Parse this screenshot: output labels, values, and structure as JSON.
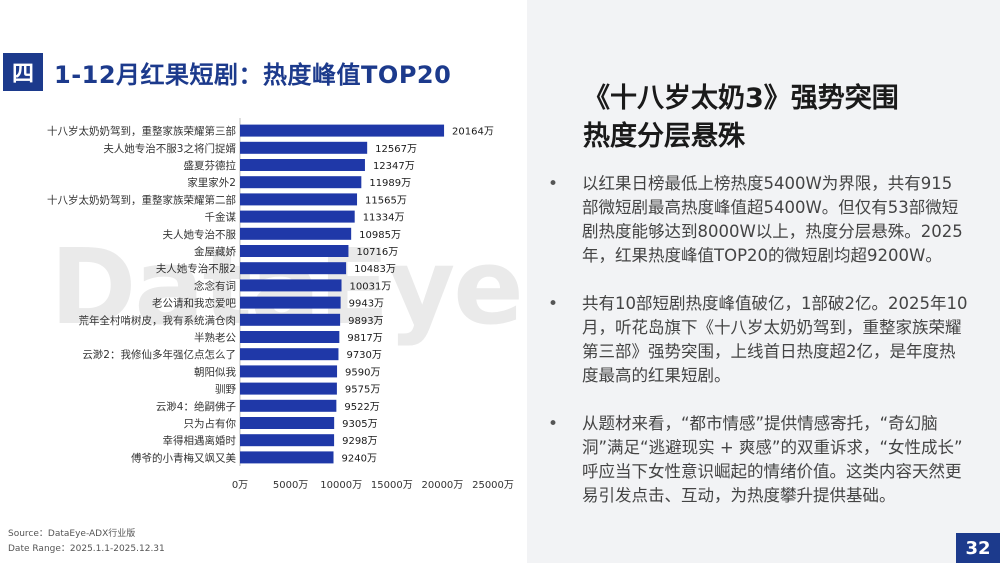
{
  "section": {
    "badge": "四",
    "title": "1-12月红果短剧：热度峰值TOP20"
  },
  "watermark": "DataEye",
  "chart_data": {
    "type": "bar",
    "orientation": "horizontal",
    "categories": [
      "十八岁太奶奶驾到，重整家族荣耀第三部",
      "夫人她专治不服3之将门捉婿",
      "盛夏芬德拉",
      "家里家外2",
      "十八岁太奶奶驾到，重整家族荣耀第二部",
      "千金谋",
      "夫人她专治不服",
      "金屋藏娇",
      "夫人她专治不服2",
      "念念有词",
      "老公请和我恋爱吧",
      "荒年全村啃树皮，我有系统满仓肉",
      "半熟老公",
      "云渺2：我修仙多年强亿点怎么了",
      "朝阳似我",
      "驯野",
      "云渺4：绝嗣佛子",
      "只为占有你",
      "幸得相遇离婚时",
      "傅爷的小青梅又飒又美"
    ],
    "values": [
      20164,
      12567,
      12347,
      11989,
      11565,
      11334,
      10985,
      10716,
      10483,
      10031,
      9943,
      9893,
      9817,
      9730,
      9590,
      9575,
      9522,
      9305,
      9298,
      9240
    ],
    "value_labels": [
      "20164万",
      "12567万",
      "12347万",
      "11989万",
      "11565万",
      "11334万",
      "10985万",
      "10716万",
      "10483万",
      "10031万",
      "9943万",
      "9893万",
      "9817万",
      "9730万",
      "9590万",
      "9575万",
      "9522万",
      "9305万",
      "9298万",
      "9240万"
    ],
    "x_ticks": [
      0,
      5000,
      10000,
      15000,
      20000,
      25000
    ],
    "x_tick_labels": [
      "0万",
      "5000万",
      "10000万",
      "15000万",
      "20000万",
      "25000万"
    ],
    "xlim": [
      0,
      25000
    ],
    "bar_color": "#1f38a8",
    "title": "",
    "xlabel": "",
    "ylabel": ""
  },
  "source": {
    "line1": "Source：DataEye-ADX行业版",
    "line2": "Date Range：2025.1.1-2025.12.31"
  },
  "right": {
    "title_line1": "《十八岁太奶3》强势突围",
    "title_line2": "热度分层悬殊",
    "bullet_symbol": "•",
    "bullets": [
      "以红果日榜最低上榜热度5400W为界限，共有915部微短剧最高热度峰值超5400W。但仅有53部微短剧热度能够达到8000W以上，热度分层悬殊。2025年，红果热度峰值TOP20的微短剧均超9200W。",
      "共有10部短剧热度峰值破亿，1部破2亿。2025年10月，听花岛旗下《十八岁太奶奶驾到，重整家族荣耀第三部》强势突围，上线首日热度超2亿，是年度热度最高的红果短剧。",
      "从题材来看，“都市情感”提供情感寄托，“奇幻脑洞”满足“逃避现实 + 爽感”的双重诉求，“女性成长” 呼应当下女性意识崛起的情绪价值。这类内容天然更易引发点击、互动，为热度攀升提供基础。"
    ]
  },
  "page_number": "32",
  "colors": {
    "brand_blue": "#1c3a8c",
    "right_bg": "#f2f3f5"
  }
}
